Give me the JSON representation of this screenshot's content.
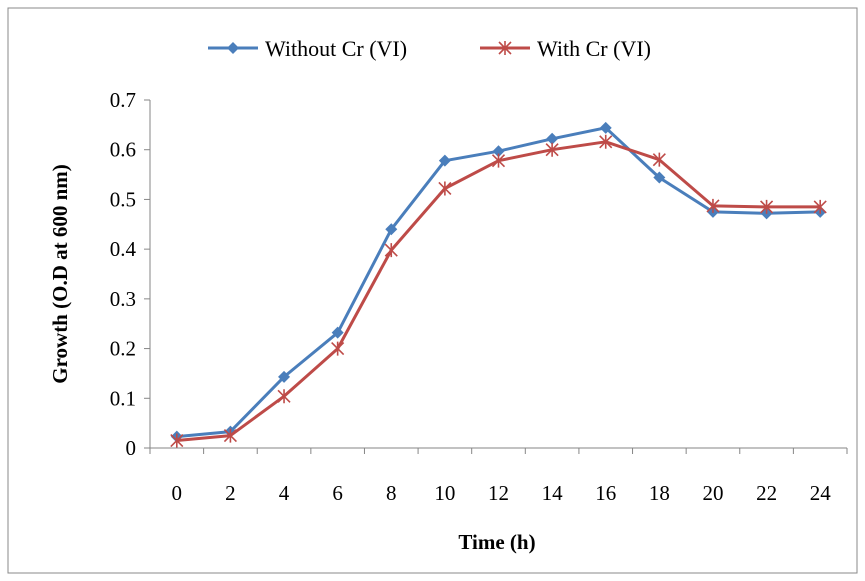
{
  "chart_data": {
    "type": "line",
    "title": "",
    "xlabel": "Time (h)",
    "ylabel": "Growth (O.D at 600 nm)",
    "x": [
      0,
      2,
      4,
      6,
      8,
      10,
      12,
      14,
      16,
      18,
      20,
      22,
      24
    ],
    "x_tick_labels": [
      "0",
      "2",
      "4",
      "6",
      "8",
      "10",
      "12",
      "14",
      "16",
      "18",
      "20",
      "22",
      "24"
    ],
    "ylim": [
      0,
      0.7
    ],
    "y_tick_labels": [
      "0",
      "0.1",
      "0.2",
      "0.3",
      "0.4",
      "0.5",
      "0.6",
      "0.7"
    ],
    "grid": false,
    "legend_position": "top",
    "series": [
      {
        "name": "Without Cr (VI)",
        "color": "#4a7ebb",
        "marker": "diamond",
        "values": [
          0.023,
          0.033,
          0.143,
          0.232,
          0.44,
          0.578,
          0.597,
          0.622,
          0.644,
          0.544,
          0.475,
          0.472,
          0.475
        ]
      },
      {
        "name": "With Cr (VI)",
        "color": "#be4b48",
        "marker": "asterisk",
        "values": [
          0.015,
          0.025,
          0.104,
          0.2,
          0.398,
          0.522,
          0.578,
          0.6,
          0.616,
          0.58,
          0.487,
          0.485,
          0.485
        ]
      }
    ]
  }
}
